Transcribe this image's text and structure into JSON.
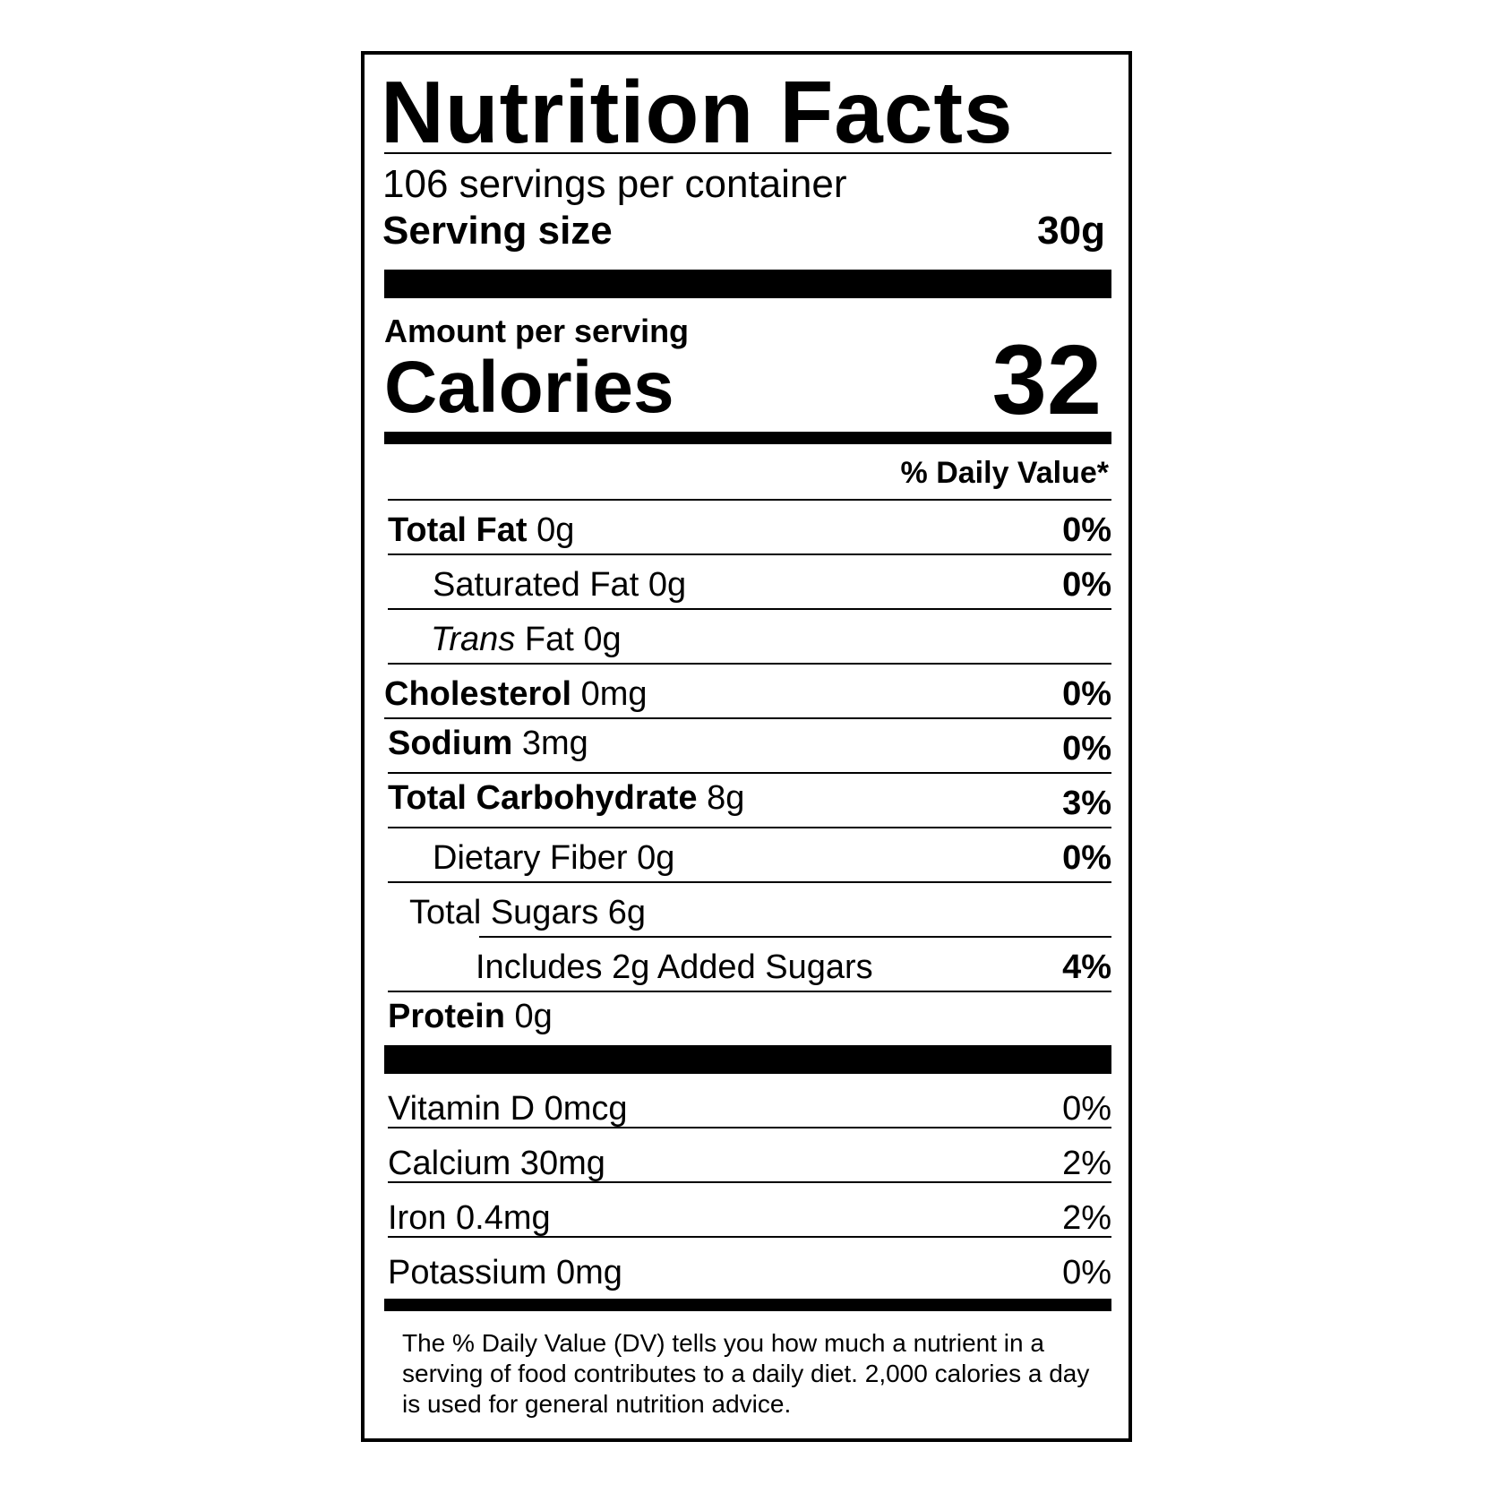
{
  "title": "Nutrition Facts",
  "servings_per_container": "106 servings per container",
  "serving_size_label": "Serving size",
  "serving_size_value": "30g",
  "amount_per_serving": "Amount per serving",
  "calories_label": "Calories",
  "calories_value": "32",
  "daily_value_header": "% Daily Value*",
  "nutrients": [
    {
      "name": "Total Fat",
      "amount": "0g",
      "dv": "0%"
    },
    {
      "name": "Saturated Fat",
      "amount": "0g",
      "dv": "0%"
    },
    {
      "name": "Trans",
      "suffix": "Fat",
      "amount": "0g",
      "dv": ""
    },
    {
      "name": "Cholesterol",
      "amount": "0mg",
      "dv": "0%"
    },
    {
      "name": "Sodium",
      "amount": "3mg",
      "dv": "0%"
    },
    {
      "name": "Total Carbohydrate",
      "amount": "8g",
      "dv": "3%"
    },
    {
      "name": "Dietary Fiber",
      "amount": "0g",
      "dv": "0%"
    },
    {
      "name": "Total Sugars",
      "amount": "6g",
      "dv": ""
    },
    {
      "name": "Includes 2g Added Sugars",
      "amount": "",
      "dv": "4%"
    },
    {
      "name": "Protein",
      "amount": "0g",
      "dv": ""
    }
  ],
  "vitamins": [
    {
      "text": "Vitamin D 0mcg",
      "dv": "0%"
    },
    {
      "text": "Calcium 30mg",
      "dv": "2%"
    },
    {
      "text": "Iron 0.4mg",
      "dv": "2%"
    },
    {
      "text": "Potassium 0mg",
      "dv": "0%"
    }
  ],
  "footnote": "The % Daily Value (DV) tells you how much a nutrient in a serving of food contributes to a daily diet. 2,000 calories a day is used for general nutrition advice."
}
